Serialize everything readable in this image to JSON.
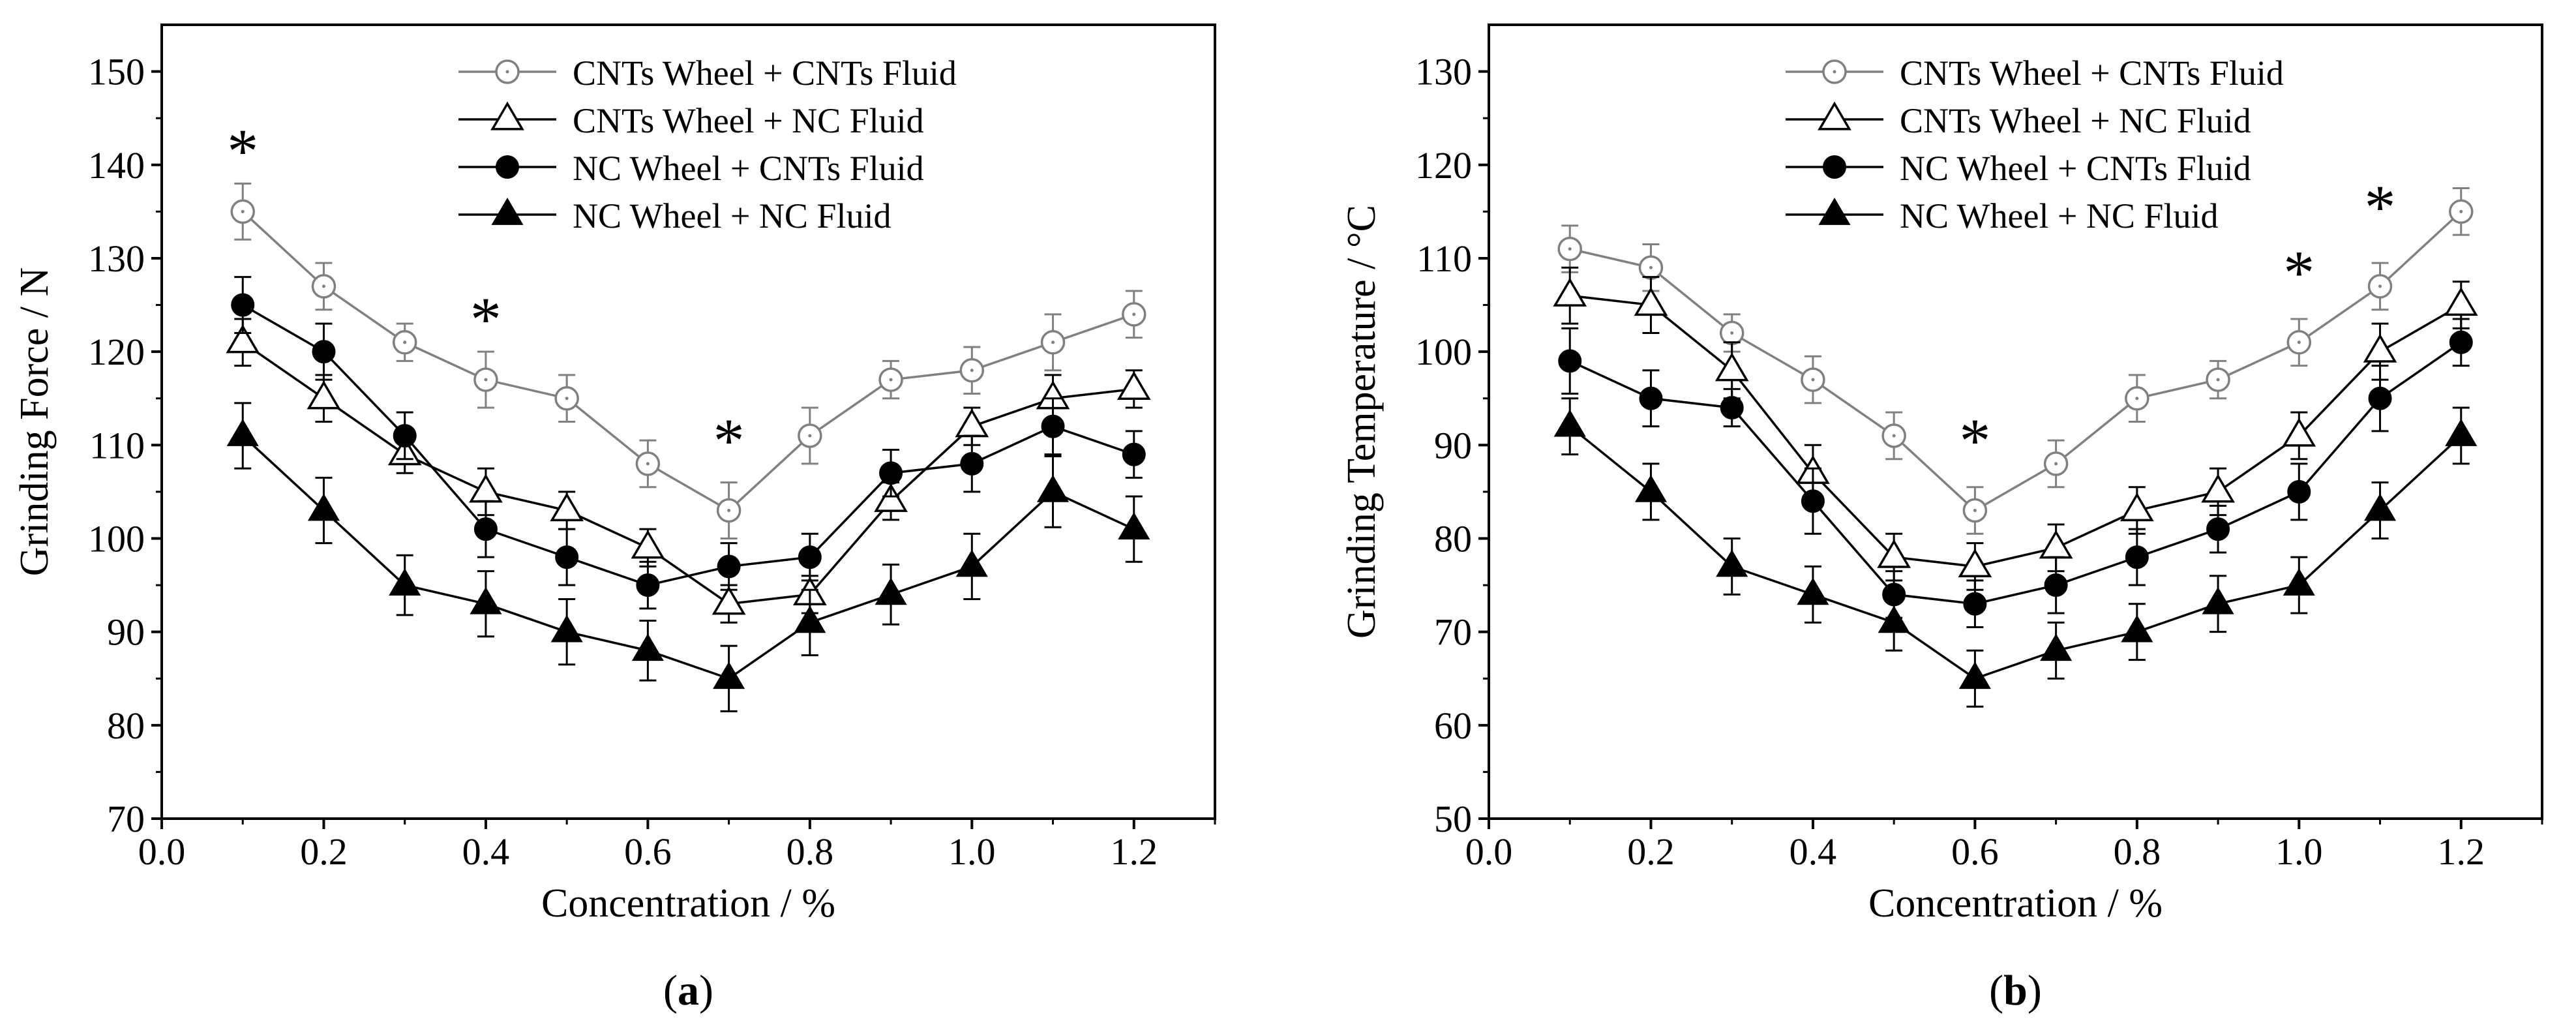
{
  "chart_data": [
    {
      "type": "line",
      "panel_label": "a",
      "xlabel": "Concentration / %",
      "ylabel": "Grinding Force / N",
      "xlim": [
        0.0,
        1.3
      ],
      "ylim": [
        70,
        155
      ],
      "xticks": [
        0.0,
        0.2,
        0.4,
        0.6,
        0.8,
        1.0,
        1.2
      ],
      "xtick_labels": [
        "0.0",
        "0.2",
        "0.4",
        "0.6",
        "0.8",
        "1.0",
        "1.2"
      ],
      "yticks": [
        70,
        80,
        90,
        100,
        110,
        120,
        130,
        140,
        150
      ],
      "ytick_labels": [
        "70",
        "80",
        "90",
        "100",
        "110",
        "120",
        "130",
        "140",
        "150"
      ],
      "x": [
        0.1,
        0.2,
        0.3,
        0.4,
        0.5,
        0.6,
        0.7,
        0.8,
        0.9,
        1.0,
        1.1,
        1.2
      ],
      "series": [
        {
          "name": "CNTs Wheel + CNTs Fluid",
          "marker": "open-circle",
          "color": "#808080",
          "values": [
            135,
            127,
            121,
            117,
            115,
            108,
            103,
            111,
            117,
            118,
            121,
            124
          ],
          "errors": [
            3,
            2.5,
            2,
            3,
            2.5,
            2.5,
            3,
            3,
            2,
            2.5,
            3,
            2.5
          ]
        },
        {
          "name": "CNTs Wheel + NC Fluid",
          "marker": "open-triangle",
          "color": "#000000",
          "values": [
            121,
            115,
            109,
            105,
            103,
            99,
            93,
            94,
            104,
            112,
            115,
            116
          ],
          "errors": [
            2.5,
            2.5,
            2,
            2.5,
            2,
            2,
            2,
            2,
            2,
            2,
            2.5,
            2
          ]
        },
        {
          "name": "NC Wheel + CNTs Fluid",
          "marker": "filled-circle",
          "color": "#000000",
          "values": [
            125,
            120,
            111,
            101,
            98,
            95,
            97,
            98,
            107,
            108,
            112,
            109
          ],
          "errors": [
            3,
            3,
            2.5,
            3,
            3,
            2.5,
            2.5,
            2.5,
            2.5,
            3,
            3,
            2.5
          ]
        },
        {
          "name": "NC Wheel + NC Fluid",
          "marker": "filled-triangle",
          "color": "#000000",
          "values": [
            111,
            103,
            95,
            93,
            90,
            88,
            85,
            91,
            94,
            97,
            105,
            101
          ],
          "errors": [
            3.5,
            3.5,
            3.2,
            3.5,
            3.5,
            3.2,
            3.5,
            3.5,
            3.2,
            3.5,
            3.8,
            3.5
          ]
        }
      ],
      "annotations": [
        {
          "text": "*",
          "x": 0.1,
          "y": 142
        },
        {
          "text": "*",
          "x": 0.4,
          "y": 124
        },
        {
          "text": "*",
          "x": 0.7,
          "y": 111
        }
      ]
    },
    {
      "type": "line",
      "panel_label": "b",
      "xlabel": "Concentration / %",
      "ylabel": "Grinding Temperature / °C",
      "xlim": [
        0.0,
        1.3
      ],
      "ylim": [
        50,
        135
      ],
      "xticks": [
        0.0,
        0.2,
        0.4,
        0.6,
        0.8,
        1.0,
        1.2
      ],
      "xtick_labels": [
        "0.0",
        "0.2",
        "0.4",
        "0.6",
        "0.8",
        "1.0",
        "1.2"
      ],
      "yticks": [
        50,
        60,
        70,
        80,
        90,
        100,
        110,
        120,
        130
      ],
      "ytick_labels": [
        "50",
        "60",
        "70",
        "80",
        "90",
        "100",
        "110",
        "120",
        "130"
      ],
      "x": [
        0.1,
        0.2,
        0.3,
        0.4,
        0.5,
        0.6,
        0.7,
        0.8,
        0.9,
        1.0,
        1.1,
        1.2
      ],
      "series": [
        {
          "name": "CNTs Wheel + CNTs Fluid",
          "marker": "open-circle",
          "color": "#808080",
          "values": [
            111,
            109,
            102,
            97,
            91,
            83,
            88,
            95,
            97,
            101,
            107,
            115
          ],
          "errors": [
            2.5,
            2.5,
            2,
            2.5,
            2.5,
            2.5,
            2.5,
            2.5,
            2,
            2.5,
            2.5,
            2.5
          ]
        },
        {
          "name": "CNTs Wheel + NC Fluid",
          "marker": "open-triangle",
          "color": "#000000",
          "values": [
            106,
            105,
            98,
            87,
            78,
            77,
            79,
            83,
            85,
            91,
            100,
            105
          ],
          "errors": [
            3,
            3,
            3,
            3,
            2.5,
            2.5,
            2.5,
            2.5,
            2.5,
            2.5,
            3,
            2.5
          ]
        },
        {
          "name": "NC Wheel + CNTs Fluid",
          "marker": "filled-circle",
          "color": "#000000",
          "values": [
            99,
            95,
            94,
            84,
            74,
            73,
            75,
            78,
            81,
            85,
            95,
            101
          ],
          "errors": [
            3.5,
            3,
            2,
            3.5,
            2.5,
            2.5,
            3,
            3,
            2.5,
            3,
            3.5,
            2.5
          ]
        },
        {
          "name": "NC Wheel + NC Fluid",
          "marker": "filled-triangle",
          "color": "#000000",
          "values": [
            92,
            85,
            77,
            74,
            71,
            65,
            68,
            70,
            73,
            75,
            83,
            91
          ],
          "errors": [
            3,
            3,
            3,
            3,
            3,
            3,
            3,
            3,
            3,
            3,
            3,
            3
          ]
        }
      ],
      "annotations": [
        {
          "text": "*",
          "x": 0.6,
          "y": 91
        },
        {
          "text": "*",
          "x": 1.0,
          "y": 109
        },
        {
          "text": "*",
          "x": 1.1,
          "y": 116
        }
      ]
    }
  ]
}
